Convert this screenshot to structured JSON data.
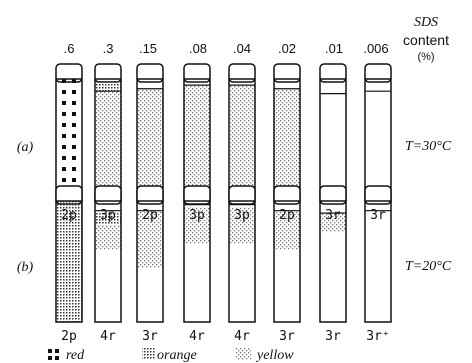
{
  "header": {
    "unit_line1": "SDS",
    "unit_line2": "content",
    "unit_line3": "(%)"
  },
  "concentrations": [
    ".6",
    ".3",
    ".15",
    ".08",
    ".04",
    ".02",
    ".01",
    ".006"
  ],
  "rows": [
    {
      "id": "a",
      "label": "(a)",
      "temperature": "T=30°C",
      "phases": [
        "2p",
        "3p",
        "2p",
        "3p",
        "3p",
        "2p",
        "3r",
        "3r"
      ],
      "tubes": [
        {
          "fill": [
            {
              "from": 0.0,
              "to": 1.0,
              "color": "red"
            }
          ],
          "interface": null
        },
        {
          "fill": [
            {
              "from": 0.0,
              "to": 0.9,
              "color": "yellow"
            },
            {
              "from": 0.9,
              "to": 1.0,
              "color": "orange"
            }
          ],
          "interface": 0.9
        },
        {
          "fill": [
            {
              "from": 0.0,
              "to": 0.92,
              "color": "yellow"
            }
          ],
          "interface": 0.92
        },
        {
          "fill": [
            {
              "from": 0.0,
              "to": 0.95,
              "color": "yellow"
            }
          ],
          "interface": 0.95
        },
        {
          "fill": [
            {
              "from": 0.0,
              "to": 0.95,
              "color": "yellow"
            }
          ],
          "interface": 0.95
        },
        {
          "fill": [
            {
              "from": 0.0,
              "to": 0.92,
              "color": "yellow"
            }
          ],
          "interface": 0.92
        },
        {
          "fill": [],
          "interface": 0.88
        },
        {
          "fill": [],
          "interface": 0.9
        }
      ]
    },
    {
      "id": "b",
      "label": "(b)",
      "temperature": "T=20°C",
      "phases": [
        "2p",
        "4r",
        "3r",
        "4r",
        "4r",
        "3r",
        "3r",
        "3r⁺"
      ],
      "tubes": [
        {
          "fill": [
            {
              "from": 0.0,
              "to": 1.0,
              "color": "orange"
            }
          ],
          "interface": null
        },
        {
          "fill": [
            {
              "from": 0.6,
              "to": 0.8,
              "color": "yellow"
            },
            {
              "from": 0.8,
              "to": 0.9,
              "color": "orange"
            }
          ],
          "interface": 0.92
        },
        {
          "fill": [
            {
              "from": 0.45,
              "to": 0.92,
              "color": "yellow"
            }
          ],
          "interface": 0.92
        },
        {
          "fill": [
            {
              "from": 0.65,
              "to": 0.95,
              "color": "yellow"
            }
          ],
          "interface": 0.97
        },
        {
          "fill": [
            {
              "from": 0.65,
              "to": 0.95,
              "color": "yellow"
            }
          ],
          "interface": 0.97
        },
        {
          "fill": [
            {
              "from": 0.6,
              "to": 0.92,
              "color": "yellow"
            }
          ],
          "interface": 0.92
        },
        {
          "fill": [
            {
              "from": 0.75,
              "to": 0.9,
              "color": "yellow"
            }
          ],
          "interface": 0.9
        },
        {
          "fill": [],
          "interface": 0.92
        }
      ]
    }
  ],
  "legend": [
    {
      "key": "red",
      "text": "red"
    },
    {
      "key": "orange",
      "text": "orange"
    },
    {
      "key": "yellow",
      "text": "yellow"
    }
  ]
}
